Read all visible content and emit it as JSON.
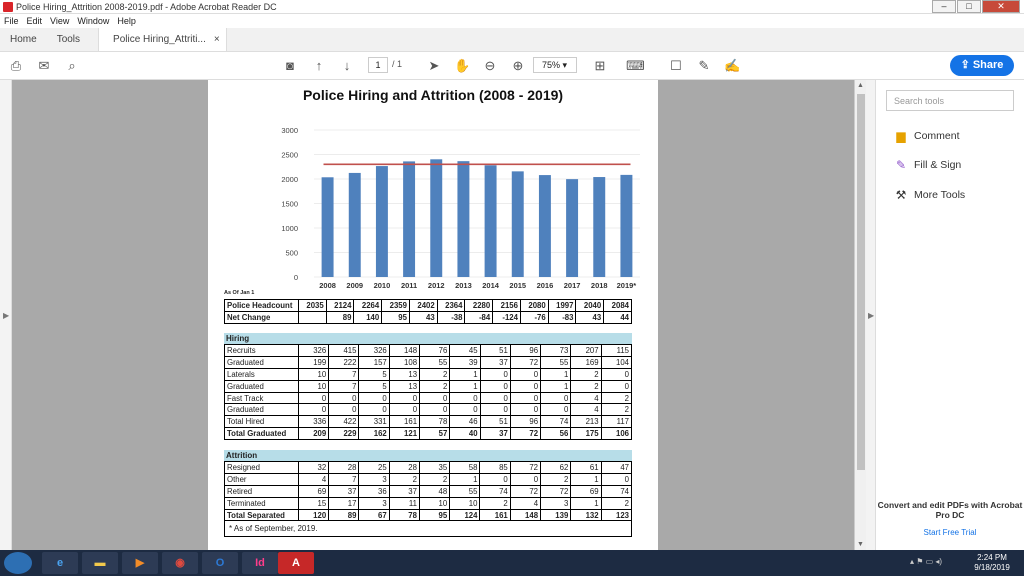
{
  "window": {
    "title": "Police Hiring_Attrition 2008-2019.pdf - Adobe Acrobat Reader DC"
  },
  "menu": [
    "File",
    "Edit",
    "View",
    "Window",
    "Help"
  ],
  "tabs": {
    "home": "Home",
    "tools": "Tools",
    "doc": "Police Hiring_Attriti...",
    "close": "×"
  },
  "toolbar": {
    "page_current": "1",
    "page_total": "/ 1",
    "zoom": "75%"
  },
  "share_label": "Share",
  "right_pane": {
    "search_placeholder": "Search tools",
    "items": [
      "Comment",
      "Fill & Sign",
      "More Tools"
    ],
    "convert_text": "Convert and edit PDFs with Acrobat Pro DC",
    "trial_link": "Start Free Trial"
  },
  "document": {
    "title": "Police Hiring and Attrition (2008 - 2019)",
    "as_of": "As Of Jan 1",
    "years": [
      "2008",
      "2009",
      "2010",
      "2011",
      "2012",
      "2013",
      "2014",
      "2015",
      "2016",
      "2017",
      "2018",
      "2019*"
    ],
    "summary_rows": [
      {
        "label": "Police Headcount",
        "values": [
          "2035",
          "2124",
          "2264",
          "2359",
          "2402",
          "2364",
          "2280",
          "2156",
          "2080",
          "1997",
          "2040",
          "2084"
        ]
      },
      {
        "label": "Net Change",
        "values": [
          "",
          "89",
          "140",
          "95",
          "43",
          "-38",
          "-84",
          "-124",
          "-76",
          "-83",
          "43",
          "44"
        ]
      }
    ],
    "hiring_header": "Hiring",
    "hiring_rows": [
      {
        "label": "Recruits",
        "values": [
          "326",
          "415",
          "326",
          "148",
          "76",
          "45",
          "51",
          "96",
          "73",
          "207",
          "115"
        ],
        "bold": false
      },
      {
        "label": "Graduated",
        "values": [
          "199",
          "222",
          "157",
          "108",
          "55",
          "39",
          "37",
          "72",
          "55",
          "169",
          "104"
        ],
        "bold": false
      },
      {
        "label": "Laterals",
        "values": [
          "10",
          "7",
          "5",
          "13",
          "2",
          "1",
          "0",
          "0",
          "1",
          "2",
          "0"
        ],
        "bold": false
      },
      {
        "label": "Graduated",
        "values": [
          "10",
          "7",
          "5",
          "13",
          "2",
          "1",
          "0",
          "0",
          "1",
          "2",
          "0"
        ],
        "bold": false
      },
      {
        "label": "Fast Track",
        "values": [
          "0",
          "0",
          "0",
          "0",
          "0",
          "0",
          "0",
          "0",
          "0",
          "4",
          "2"
        ],
        "bold": false
      },
      {
        "label": "Graduated",
        "values": [
          "0",
          "0",
          "0",
          "0",
          "0",
          "0",
          "0",
          "0",
          "0",
          "4",
          "2"
        ],
        "bold": false
      },
      {
        "label": "Total Hired",
        "values": [
          "336",
          "422",
          "331",
          "161",
          "78",
          "46",
          "51",
          "96",
          "74",
          "213",
          "117"
        ],
        "bold": false
      },
      {
        "label": "Total Graduated",
        "values": [
          "209",
          "229",
          "162",
          "121",
          "57",
          "40",
          "37",
          "72",
          "56",
          "175",
          "106"
        ],
        "bold": true
      }
    ],
    "attrition_header": "Attrition",
    "attrition_rows": [
      {
        "label": "Resigned",
        "values": [
          "32",
          "28",
          "25",
          "28",
          "35",
          "58",
          "85",
          "72",
          "62",
          "61",
          "47"
        ],
        "bold": false
      },
      {
        "label": "Other",
        "values": [
          "4",
          "7",
          "3",
          "2",
          "2",
          "1",
          "0",
          "0",
          "2",
          "1",
          "0"
        ],
        "bold": false
      },
      {
        "label": "Retired",
        "values": [
          "69",
          "37",
          "36",
          "37",
          "48",
          "55",
          "74",
          "72",
          "72",
          "69",
          "74"
        ],
        "bold": false
      },
      {
        "label": "Terminated",
        "values": [
          "15",
          "17",
          "3",
          "11",
          "10",
          "10",
          "2",
          "4",
          "3",
          "1",
          "2"
        ],
        "bold": false
      },
      {
        "label": "Total Separated",
        "values": [
          "120",
          "89",
          "67",
          "78",
          "95",
          "124",
          "161",
          "148",
          "139",
          "132",
          "123"
        ],
        "bold": true
      }
    ],
    "footnote": "* As of September, 2019."
  },
  "chart_data": {
    "type": "bar",
    "categories": [
      "2008",
      "2009",
      "2010",
      "2011",
      "2012",
      "2013",
      "2014",
      "2015",
      "2016",
      "2017",
      "2018",
      "2019*"
    ],
    "values": [
      2035,
      2124,
      2264,
      2359,
      2402,
      2364,
      2280,
      2156,
      2080,
      1997,
      2040,
      2084
    ],
    "reference_line": 2300,
    "ylim": [
      0,
      3000
    ],
    "yticks": [
      0,
      500,
      1000,
      1500,
      2000,
      2500,
      3000
    ],
    "bar_color": "#4f81bd",
    "line_color": "#c0504d",
    "grid": true
  },
  "taskbar": {
    "icons": [
      "ie",
      "explorer",
      "media",
      "chrome",
      "outlook",
      "indesign",
      "acrobat"
    ],
    "time": "2:24 PM",
    "date": "9/18/2019"
  }
}
